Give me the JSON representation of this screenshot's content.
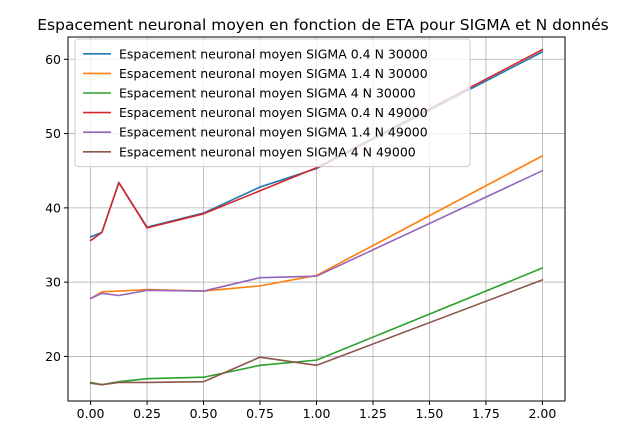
{
  "chart_data": {
    "type": "line",
    "title": "Espacement neuronal moyen en fonction de ETA pour SIGMA et N donnés",
    "xlabel": "",
    "ylabel": "",
    "xlim": [
      -0.1,
      2.1
    ],
    "ylim": [
      14.0,
      63.0
    ],
    "xticks": [
      0.0,
      0.25,
      0.5,
      0.75,
      1.0,
      1.25,
      1.5,
      1.75,
      2.0
    ],
    "xtick_labels": [
      "0.00",
      "0.25",
      "0.50",
      "0.75",
      "1.00",
      "1.25",
      "1.50",
      "1.75",
      "2.00"
    ],
    "yticks": [
      20,
      30,
      40,
      50,
      60
    ],
    "ytick_labels": [
      "20",
      "30",
      "40",
      "50",
      "60"
    ],
    "grid": true,
    "legend_position": "upper-left",
    "series": [
      {
        "name": "Espacement neuronal moyen SIGMA 0.4 N 30000",
        "color": "#1f77b4",
        "x": [
          0,
          0.05,
          0.125,
          0.25,
          0.5,
          0.75,
          1.0,
          2.0
        ],
        "y": [
          36.1,
          36.7,
          43.4,
          37.4,
          39.3,
          42.8,
          45.3,
          61.0
        ]
      },
      {
        "name": "Espacement neuronal moyen SIGMA 1.4 N 30000",
        "color": "#ff7f0e",
        "x": [
          0,
          0.05,
          0.125,
          0.25,
          0.5,
          0.75,
          1.0,
          2.0
        ],
        "y": [
          27.8,
          28.7,
          28.8,
          29.0,
          28.8,
          29.5,
          30.9,
          47.0
        ]
      },
      {
        "name": "Espacement neuronal moyen SIGMA 4 N 30000",
        "color": "#2ca02c",
        "x": [
          0,
          0.05,
          0.125,
          0.25,
          0.5,
          0.75,
          1.0,
          2.0
        ],
        "y": [
          16.5,
          16.2,
          16.6,
          17.0,
          17.2,
          18.8,
          19.5,
          31.9
        ]
      },
      {
        "name": "Espacement neuronal moyen SIGMA 0.4 N 49000",
        "color": "#d62728",
        "x": [
          0,
          0.05,
          0.125,
          0.25,
          0.5,
          0.75,
          1.0,
          2.0
        ],
        "y": [
          35.6,
          36.7,
          43.4,
          37.3,
          39.2,
          42.3,
          45.4,
          61.3
        ]
      },
      {
        "name": "Espacement neuronal moyen SIGMA 1.4 N 49000",
        "color": "#9467bd",
        "x": [
          0,
          0.05,
          0.125,
          0.25,
          0.5,
          0.75,
          1.0,
          2.0
        ],
        "y": [
          27.8,
          28.5,
          28.2,
          28.9,
          28.8,
          30.6,
          30.8,
          45.0
        ]
      },
      {
        "name": "Espacement neuronal moyen SIGMA 4 N 49000",
        "color": "#8c564b",
        "x": [
          0,
          0.05,
          0.125,
          0.25,
          0.5,
          0.75,
          1.0,
          2.0
        ],
        "y": [
          16.4,
          16.2,
          16.5,
          16.5,
          16.6,
          19.9,
          18.8,
          30.3
        ]
      }
    ]
  }
}
